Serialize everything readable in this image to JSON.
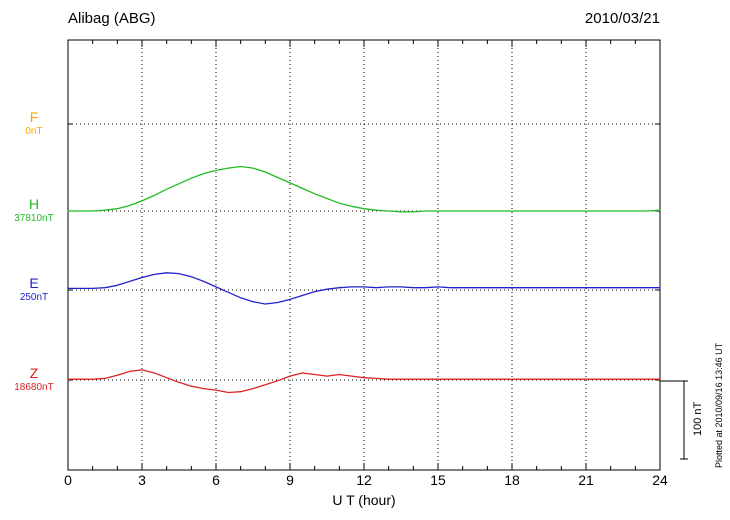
{
  "chart_data": {
    "type": "line",
    "title": "Alibag (ABG)",
    "date": "2010/03/21",
    "xlabel": "U T (hour)",
    "xlim": [
      0,
      24
    ],
    "xticks": [
      0,
      3,
      6,
      9,
      12,
      15,
      18,
      21,
      24
    ],
    "x_start": 0,
    "x_step_hours": 0.5,
    "grid": "dotted vertical at 3h intervals, dotted horizontal at each trace baseline",
    "scale_bar": {
      "label": "100 nT",
      "nT": 100
    },
    "footnote": "Plotted at 2010/09/16 13:46 UT",
    "series": [
      {
        "name": "F",
        "baseline_label": "0nT",
        "color": "#FFA500",
        "values": []
      },
      {
        "name": "H",
        "baseline_label": "37810nT",
        "color": "#22BB22",
        "values": [
          0,
          0,
          0,
          1,
          3,
          7,
          13,
          20,
          28,
          35,
          42,
          48,
          52,
          55,
          57,
          55,
          50,
          43,
          36,
          29,
          22,
          16,
          10,
          6,
          3,
          1,
          0,
          -1,
          -1,
          0,
          0,
          0,
          0,
          0,
          0,
          0,
          0,
          0,
          0,
          0,
          0,
          0,
          0,
          0,
          0,
          0,
          0,
          0,
          1
        ]
      },
      {
        "name": "E",
        "baseline_label": "250nT",
        "color": "#2222CC",
        "values": [
          2,
          2,
          2,
          3,
          6,
          11,
          16,
          20,
          22,
          21,
          17,
          11,
          4,
          -3,
          -10,
          -15,
          -18,
          -16,
          -12,
          -7,
          -2,
          1,
          3,
          4,
          4,
          3,
          4,
          4,
          3,
          3,
          4,
          3,
          3,
          3,
          3,
          3,
          3,
          3,
          3,
          3,
          3,
          3,
          3,
          3,
          3,
          3,
          3,
          3,
          3
        ]
      },
      {
        "name": "Z",
        "baseline_label": "18680nT",
        "color": "#DD2222",
        "values": [
          1,
          1,
          1,
          2,
          6,
          11,
          13,
          9,
          3,
          -3,
          -8,
          -11,
          -13,
          -16,
          -15,
          -11,
          -6,
          -1,
          5,
          9,
          7,
          5,
          7,
          5,
          3,
          2,
          1,
          1,
          1,
          1,
          1,
          1,
          1,
          1,
          1,
          1,
          1,
          1,
          1,
          1,
          1,
          1,
          1,
          1,
          1,
          1,
          1,
          1,
          1
        ]
      }
    ]
  }
}
